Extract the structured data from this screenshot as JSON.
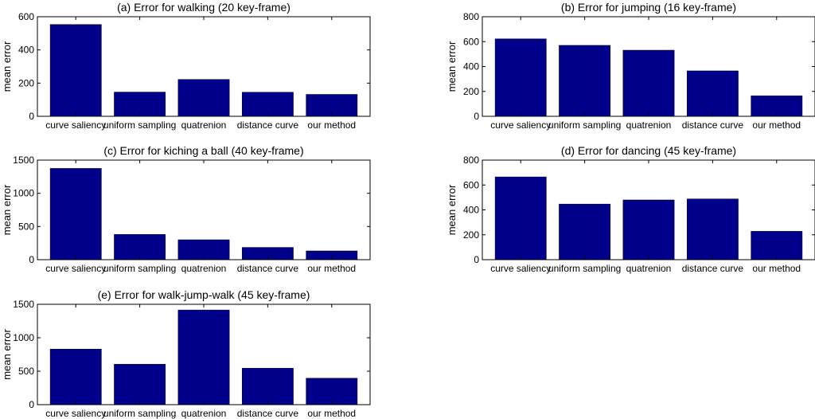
{
  "figure": {
    "bar_color": "#00008b",
    "frame_color": "#000000",
    "background": "#ffffff"
  },
  "chart_data": [
    {
      "type": "bar",
      "title": "(a) Error for walking (20 key-frame)",
      "ylabel": "mean error",
      "xlabel": "",
      "categories": [
        "curve saliency",
        "uniform sampling",
        "quatrenion",
        "distance curve",
        "our method"
      ],
      "values": [
        553,
        146,
        222,
        145,
        132
      ],
      "ylim": [
        0,
        600
      ],
      "yticks": [
        0,
        200,
        400,
        600
      ],
      "grid": false
    },
    {
      "type": "bar",
      "title": "(b) Error for jumping (16 key-frame)",
      "ylabel": "mean error",
      "xlabel": "",
      "categories": [
        "curve saliency",
        "uniform sampling",
        "quatrenion",
        "distance curve",
        "our method"
      ],
      "values": [
        622,
        570,
        531,
        365,
        165
      ],
      "ylim": [
        0,
        800
      ],
      "yticks": [
        0,
        200,
        400,
        600,
        800
      ],
      "grid": false
    },
    {
      "type": "bar",
      "title": "(c) Error for kiching a ball (40 key-frame)",
      "ylabel": "mean error",
      "xlabel": "",
      "categories": [
        "curve saliency",
        "uniform sampling",
        "quatrenion",
        "distance curve",
        "our method"
      ],
      "values": [
        1375,
        380,
        300,
        185,
        132
      ],
      "ylim": [
        0,
        1500
      ],
      "yticks": [
        0,
        500,
        1000,
        1500
      ],
      "grid": false
    },
    {
      "type": "bar",
      "title": "(d) Error for dancing (45 key-frame)",
      "ylabel": "mean error",
      "xlabel": "",
      "categories": [
        "curve saliency",
        "uniform sampling",
        "quatrenion",
        "distance curve",
        "our method"
      ],
      "values": [
        665,
        447,
        480,
        488,
        228
      ],
      "ylim": [
        0,
        800
      ],
      "yticks": [
        0,
        200,
        400,
        600,
        800
      ],
      "grid": false
    },
    {
      "type": "bar",
      "title": "(e) Error for walk-jump-walk (45 key-frame)",
      "ylabel": "mean error",
      "xlabel": "",
      "categories": [
        "curve saliency",
        "uniform sampling",
        "quatrenion",
        "distance curve",
        "our method"
      ],
      "values": [
        830,
        605,
        1415,
        545,
        395
      ],
      "ylim": [
        0,
        1500
      ],
      "yticks": [
        0,
        500,
        1000,
        1500
      ],
      "grid": false
    }
  ]
}
